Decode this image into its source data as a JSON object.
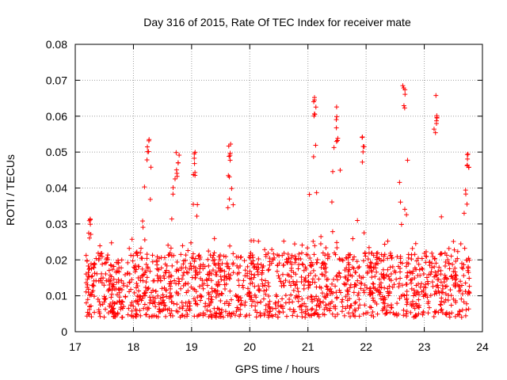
{
  "chart_data": {
    "type": "scatter",
    "title": "Day 316 of 2015, Rate Of TEC Index for receiver mate",
    "xlabel": "GPS time / hours",
    "ylabel": "ROTI / TECUs",
    "xlim": [
      17,
      24
    ],
    "ylim": [
      0,
      0.08
    ],
    "x_ticks": [
      "17",
      "18",
      "19",
      "20",
      "21",
      "22",
      "23",
      "24"
    ],
    "y_ticks": [
      "0",
      "0.01",
      "0.02",
      "0.03",
      "0.04",
      "0.05",
      "0.06",
      "0.07",
      "0.08"
    ],
    "grid": true,
    "marker": "+",
    "color": "#ff0000",
    "series": [
      {
        "name": "ROTI",
        "points_note": "dense cloud of ~1500 points, representative subset",
        "x": [
          17.2,
          17.22,
          17.25,
          17.3,
          17.35,
          17.4,
          17.45,
          17.5,
          17.55,
          17.6,
          17.65,
          17.7,
          17.75,
          17.8,
          17.85,
          17.9,
          17.95,
          18.0,
          18.05,
          18.1,
          18.15,
          18.2,
          18.25,
          18.3,
          18.35,
          18.4,
          18.45,
          18.5,
          18.55,
          18.6,
          18.65,
          18.7,
          18.75,
          18.8,
          18.85,
          18.9,
          18.95,
          19.0,
          19.05,
          19.1,
          19.15,
          19.2,
          19.25,
          19.3,
          19.35,
          19.4,
          19.45,
          19.5,
          19.55,
          19.6,
          19.65,
          19.7,
          19.75,
          19.8,
          19.85,
          19.9,
          19.95,
          20.0,
          20.05,
          20.1,
          20.15,
          20.2,
          20.25,
          20.3,
          20.35,
          20.4,
          20.45,
          20.5,
          20.55,
          20.6,
          20.65,
          20.7,
          20.75,
          20.8,
          20.85,
          20.9,
          20.95,
          21.0,
          21.05,
          21.1,
          21.15,
          21.2,
          21.25,
          21.3,
          21.35,
          21.4,
          21.45,
          21.5,
          21.55,
          21.6,
          21.65,
          21.7,
          21.75,
          21.8,
          21.85,
          21.9,
          21.95,
          22.0,
          22.05,
          22.1,
          22.15,
          22.2,
          22.25,
          22.3,
          22.35,
          22.4,
          22.45,
          22.5,
          22.55,
          22.6,
          22.65,
          22.7,
          22.75,
          22.8,
          22.85,
          22.9,
          22.95,
          23.0,
          23.05,
          23.1,
          23.15,
          23.2,
          23.25,
          23.3,
          23.35,
          23.4,
          23.45,
          23.5,
          23.55,
          23.6,
          23.65,
          23.7,
          23.72,
          23.75
        ],
        "peaks": [
          {
            "x": 17.25,
            "y": 0.034
          },
          {
            "x": 18.25,
            "y": 0.055
          },
          {
            "x": 18.75,
            "y": 0.05
          },
          {
            "x": 19.05,
            "y": 0.051
          },
          {
            "x": 19.65,
            "y": 0.051
          },
          {
            "x": 21.1,
            "y": 0.067
          },
          {
            "x": 21.5,
            "y": 0.06
          },
          {
            "x": 21.95,
            "y": 0.055
          },
          {
            "x": 22.65,
            "y": 0.07
          },
          {
            "x": 23.2,
            "y": 0.063
          },
          {
            "x": 23.75,
            "y": 0.05
          }
        ]
      }
    ]
  }
}
